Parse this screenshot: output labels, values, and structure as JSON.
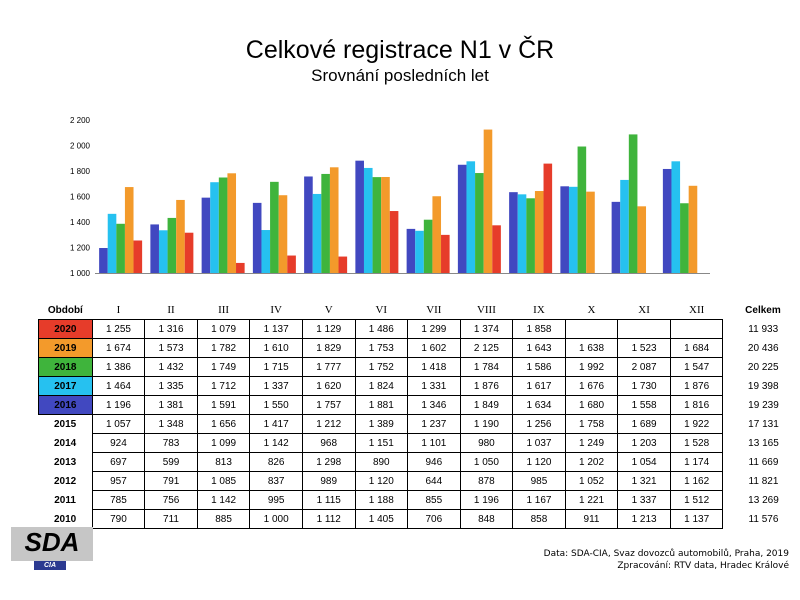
{
  "title": "Celkové registrace N1 v ČR",
  "subtitle": "Srovnání posledních let",
  "table": {
    "period_label": "Období",
    "total_label": "Celkem",
    "months": [
      "I",
      "II",
      "III",
      "IV",
      "V",
      "VI",
      "VII",
      "VIII",
      "IX",
      "X",
      "XI",
      "XII"
    ],
    "rows": [
      {
        "year": "2020",
        "color": "#e63c2a",
        "highlight": true,
        "cells": [
          "1 255",
          "1 316",
          "1 079",
          "1 137",
          "1 129",
          "1 486",
          "1 299",
          "1 374",
          "1 858",
          "",
          "",
          ""
        ],
        "total": "11 933"
      },
      {
        "year": "2019",
        "color": "#f39a2b",
        "highlight": true,
        "cells": [
          "1 674",
          "1 573",
          "1 782",
          "1 610",
          "1 829",
          "1 753",
          "1 602",
          "2 125",
          "1 643",
          "1 638",
          "1 523",
          "1 684"
        ],
        "total": "20 436"
      },
      {
        "year": "2018",
        "color": "#3fb43c",
        "highlight": true,
        "cells": [
          "1 386",
          "1 432",
          "1 749",
          "1 715",
          "1 777",
          "1 752",
          "1 418",
          "1 784",
          "1 586",
          "1 992",
          "2 087",
          "1 547"
        ],
        "total": "20 225"
      },
      {
        "year": "2017",
        "color": "#26c1f0",
        "highlight": true,
        "cells": [
          "1 464",
          "1 335",
          "1 712",
          "1 337",
          "1 620",
          "1 824",
          "1 331",
          "1 876",
          "1 617",
          "1 676",
          "1 730",
          "1 876"
        ],
        "total": "19 398"
      },
      {
        "year": "2016",
        "color": "#4148c0",
        "highlight": true,
        "cells": [
          "1 196",
          "1 381",
          "1 591",
          "1 550",
          "1 757",
          "1 881",
          "1 346",
          "1 849",
          "1 634",
          "1 680",
          "1 558",
          "1 816"
        ],
        "total": "19 239"
      },
      {
        "year": "2015",
        "highlight": false,
        "cells": [
          "1 057",
          "1 348",
          "1 656",
          "1 417",
          "1 212",
          "1 389",
          "1 237",
          "1 190",
          "1 256",
          "1 758",
          "1 689",
          "1 922"
        ],
        "total": "17 131"
      },
      {
        "year": "2014",
        "highlight": false,
        "cells": [
          "924",
          "783",
          "1 099",
          "1 142",
          "968",
          "1 151",
          "1 101",
          "980",
          "1 037",
          "1 249",
          "1 203",
          "1 528"
        ],
        "total": "13 165"
      },
      {
        "year": "2013",
        "highlight": false,
        "cells": [
          "697",
          "599",
          "813",
          "826",
          "1 298",
          "890",
          "946",
          "1 050",
          "1 120",
          "1 202",
          "1 054",
          "1 174"
        ],
        "total": "11 669"
      },
      {
        "year": "2012",
        "highlight": false,
        "cells": [
          "957",
          "791",
          "1 085",
          "837",
          "989",
          "1 120",
          "644",
          "878",
          "985",
          "1 052",
          "1 321",
          "1 162"
        ],
        "total": "11 821"
      },
      {
        "year": "2011",
        "highlight": false,
        "cells": [
          "785",
          "756",
          "1 142",
          "995",
          "1 115",
          "1 188",
          "855",
          "1 196",
          "1 167",
          "1 221",
          "1 337",
          "1 512"
        ],
        "total": "13 269"
      },
      {
        "year": "2010",
        "highlight": false,
        "cells": [
          "790",
          "711",
          "885",
          "1 000",
          "1 112",
          "1 405",
          "706",
          "848",
          "858",
          "911",
          "1 213",
          "1 137"
        ],
        "total": "11 576"
      }
    ]
  },
  "chart_data": {
    "type": "bar",
    "categories": [
      "I",
      "II",
      "III",
      "IV",
      "V",
      "VI",
      "VII",
      "VIII",
      "IX",
      "X",
      "XI",
      "XII"
    ],
    "ylim": [
      1000,
      2200
    ],
    "yticks": [
      1000,
      1200,
      1400,
      1600,
      1800,
      2000,
      2200
    ],
    "ytick_labels": [
      "1 000",
      "1 200",
      "1 400",
      "1 600",
      "1 800",
      "2 000",
      "2 200"
    ],
    "series": [
      {
        "name": "2016",
        "color": "#4148c0",
        "values": [
          1196,
          1381,
          1591,
          1550,
          1757,
          1881,
          1346,
          1849,
          1634,
          1680,
          1558,
          1816
        ]
      },
      {
        "name": "2017",
        "color": "#26c1f0",
        "values": [
          1464,
          1335,
          1712,
          1337,
          1620,
          1824,
          1331,
          1876,
          1617,
          1676,
          1730,
          1876
        ]
      },
      {
        "name": "2018",
        "color": "#3fb43c",
        "values": [
          1386,
          1432,
          1749,
          1715,
          1777,
          1752,
          1418,
          1784,
          1586,
          1992,
          2087,
          1547
        ]
      },
      {
        "name": "2019",
        "color": "#f39a2b",
        "values": [
          1674,
          1573,
          1782,
          1610,
          1829,
          1753,
          1602,
          2125,
          1643,
          1638,
          1523,
          1684
        ]
      },
      {
        "name": "2020",
        "color": "#e63c2a",
        "values": [
          1255,
          1316,
          1079,
          1137,
          1129,
          1486,
          1299,
          1374,
          1858,
          null,
          null,
          null
        ]
      }
    ],
    "grid": false
  },
  "logo": {
    "text": "SDA",
    "sub": "CIA"
  },
  "source_line1": "Data: SDA-CIA, Svaz dovozců automobilů, Praha, 2019",
  "source_line2": "Zpracování: RTV data, Hradec Králové"
}
